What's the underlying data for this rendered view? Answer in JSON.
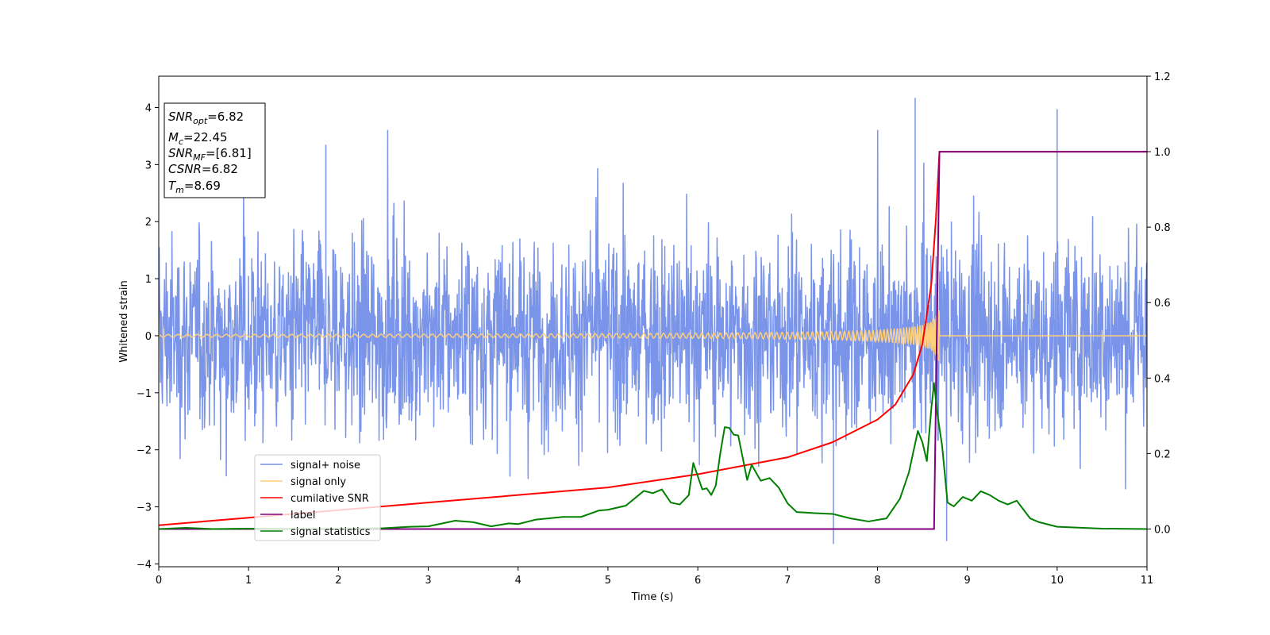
{
  "chart_data": {
    "type": "line",
    "xlabel": "Time (s)",
    "ylabel": "Whitened strain",
    "xlim": [
      0,
      11
    ],
    "ylim": [
      -4.05,
      4.55
    ],
    "y2lim": [
      -0.1,
      1.2
    ],
    "x_ticks": [
      "0",
      "1",
      "2",
      "3",
      "4",
      "5",
      "6",
      "7",
      "8",
      "9",
      "10",
      "11"
    ],
    "y_ticks": [
      "−4",
      "−3",
      "−2",
      "−1",
      "0",
      "1",
      "2",
      "3",
      "4"
    ],
    "y2_ticks": [
      "0.0",
      "0.2",
      "0.4",
      "0.6",
      "0.8",
      "1.0",
      "1.2"
    ],
    "grid": false,
    "legend_position": "bottom-left",
    "annotation": [
      {
        "name": "SNR",
        "sub": "opt",
        "value": "=6.82"
      },
      {
        "name": "M",
        "sub": "c",
        "value": "=22.45"
      },
      {
        "name": "SNR",
        "sub": "MF",
        "value": "=[6.81]"
      },
      {
        "name": "CSNR",
        "sub": "",
        "value": "=6.82"
      },
      {
        "name": "T",
        "sub": "m",
        "value": "=8.69"
      }
    ],
    "series": [
      {
        "name": "signal+ noise",
        "color": "#7994e8",
        "axis": "left",
        "description_values": {
          "noise_std": 0.85,
          "peak_max": 4.17,
          "peak_min": -3.65,
          "spike_x": [
            1.86,
            8.42,
            10.0,
            7.51,
            8.77
          ]
        }
      },
      {
        "name": "signal only",
        "color": "#ffcf7a",
        "axis": "left",
        "chirp_end": 8.69,
        "chirp_max_amplitude": 0.45
      },
      {
        "name": "cumilative SNR",
        "color": "#ff0000",
        "axis": "right",
        "x": [
          0,
          1,
          2,
          3,
          4,
          5,
          6,
          7,
          7.5,
          8,
          8.2,
          8.4,
          8.5,
          8.6,
          8.65,
          8.69,
          11
        ],
        "y": [
          0.01,
          0.03,
          0.05,
          0.07,
          0.09,
          0.11,
          0.145,
          0.19,
          0.23,
          0.29,
          0.33,
          0.41,
          0.49,
          0.65,
          0.82,
          1.0,
          1.0
        ]
      },
      {
        "name": "label",
        "color": "#800080",
        "axis": "right",
        "x": [
          0,
          8.63,
          8.69,
          11
        ],
        "y": [
          0.0,
          0.0,
          1.0,
          1.0
        ]
      },
      {
        "name": "signal statistics",
        "color": "#008000",
        "axis": "right",
        "x": [
          0,
          0.3,
          0.6,
          1.0,
          1.5,
          2.0,
          2.5,
          2.8,
          3.0,
          3.3,
          3.5,
          3.7,
          3.9,
          4.0,
          4.2,
          4.5,
          4.7,
          4.9,
          5.0,
          5.2,
          5.4,
          5.5,
          5.6,
          5.7,
          5.8,
          5.9,
          5.95,
          6.05,
          6.1,
          6.15,
          6.2,
          6.25,
          6.3,
          6.35,
          6.4,
          6.45,
          6.55,
          6.6,
          6.7,
          6.8,
          6.9,
          7.0,
          7.1,
          7.3,
          7.5,
          7.7,
          7.9,
          8.1,
          8.25,
          8.35,
          8.45,
          8.5,
          8.55,
          8.6,
          8.63,
          8.67,
          8.72,
          8.78,
          8.85,
          8.95,
          9.05,
          9.15,
          9.25,
          9.35,
          9.45,
          9.55,
          9.7,
          9.8,
          10.0,
          10.5,
          11.0
        ],
        "y": [
          0.0,
          0.003,
          0.0,
          0.001,
          0.0,
          0.0,
          0.002,
          0.006,
          0.007,
          0.022,
          0.018,
          0.007,
          0.015,
          0.013,
          0.025,
          0.032,
          0.032,
          0.049,
          0.051,
          0.062,
          0.101,
          0.095,
          0.105,
          0.07,
          0.065,
          0.09,
          0.175,
          0.105,
          0.108,
          0.09,
          0.115,
          0.2,
          0.27,
          0.268,
          0.25,
          0.248,
          0.13,
          0.17,
          0.128,
          0.135,
          0.11,
          0.068,
          0.045,
          0.042,
          0.04,
          0.028,
          0.02,
          0.028,
          0.08,
          0.15,
          0.26,
          0.23,
          0.18,
          0.32,
          0.387,
          0.3,
          0.22,
          0.07,
          0.06,
          0.085,
          0.075,
          0.1,
          0.09,
          0.075,
          0.065,
          0.075,
          0.028,
          0.018,
          0.006,
          0.001,
          0.0
        ]
      }
    ]
  }
}
